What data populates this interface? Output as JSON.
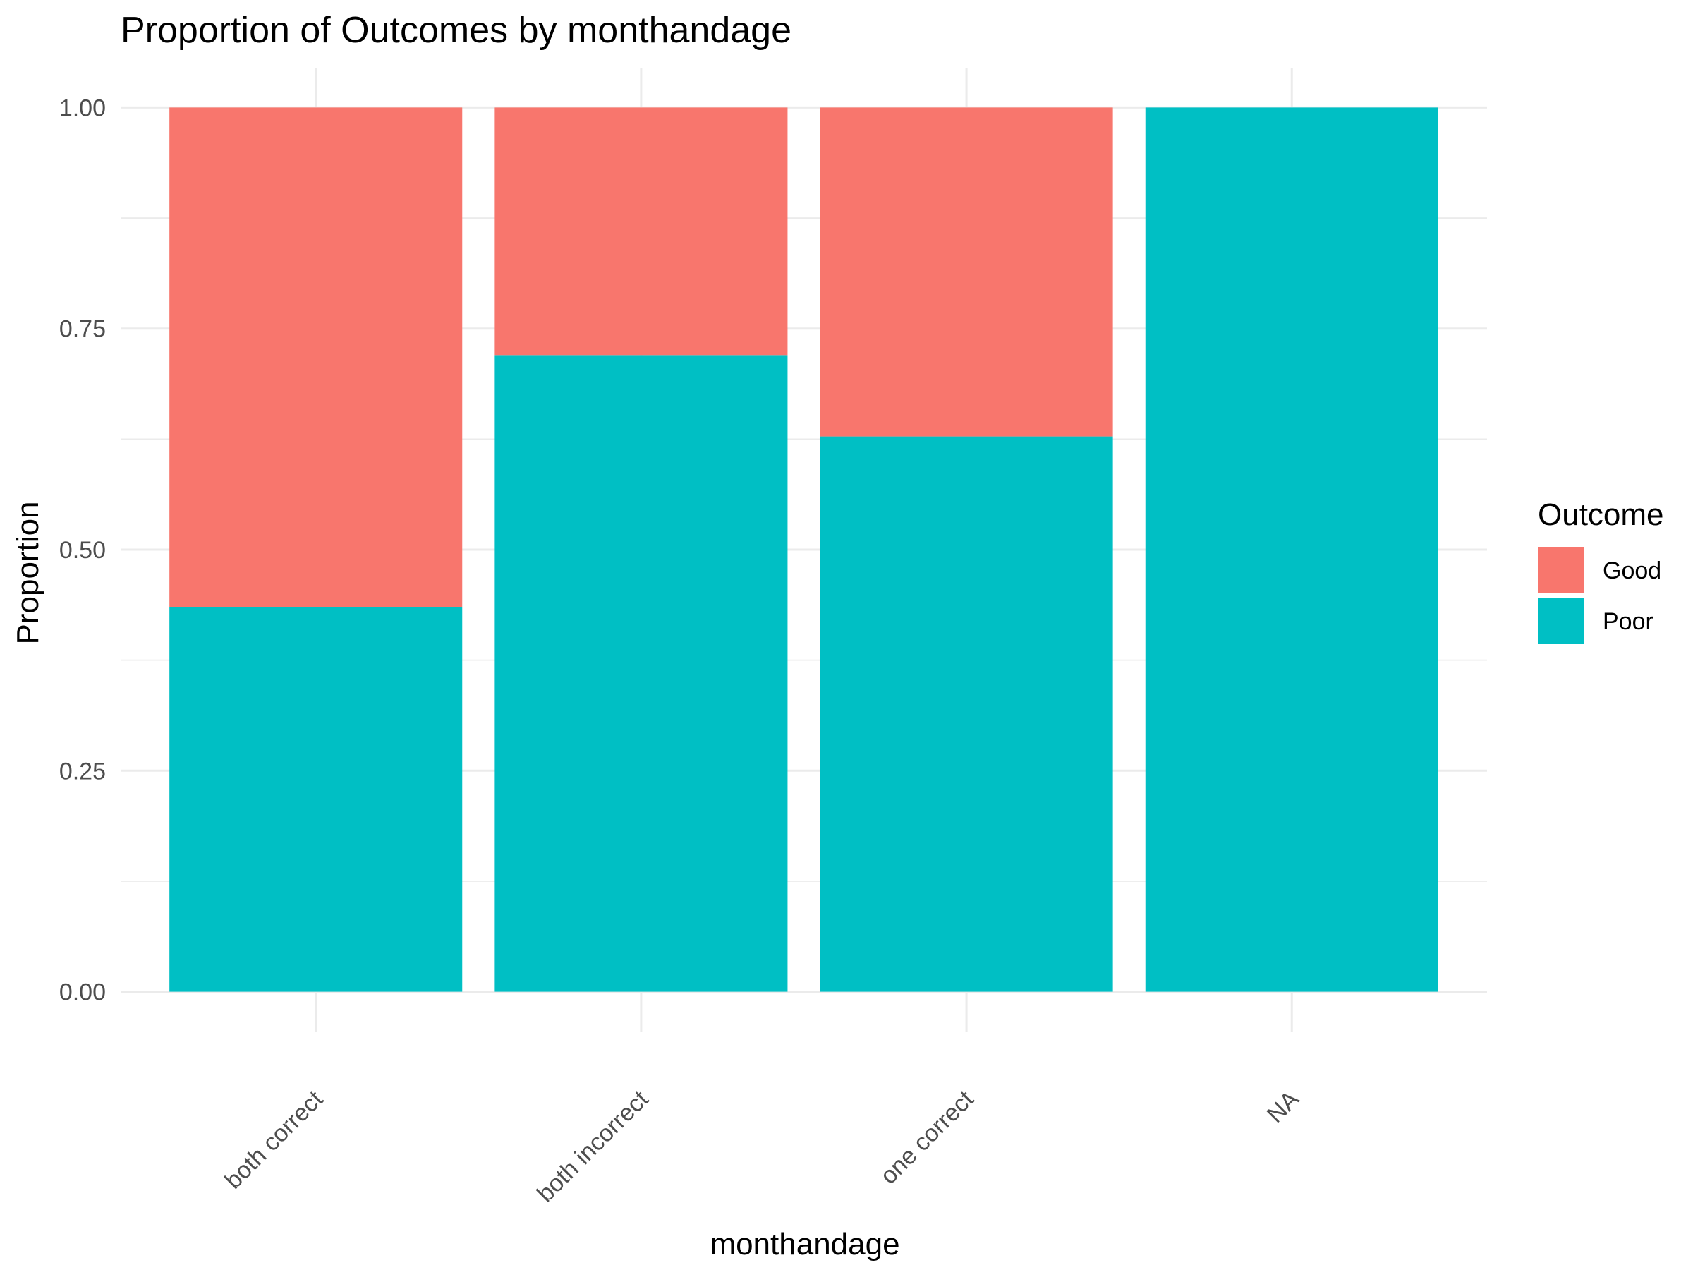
{
  "chart_data": {
    "type": "bar",
    "stacked": true,
    "title": "Proportion of Outcomes by monthandage",
    "xlabel": "monthandage",
    "ylabel": "Proportion",
    "categories": [
      "both correct",
      "both incorrect",
      "one correct",
      "NA"
    ],
    "series": [
      {
        "name": "Good",
        "values": [
          0.565,
          0.28,
          0.372,
          0.0
        ]
      },
      {
        "name": "Poor",
        "values": [
          0.435,
          0.72,
          0.628,
          1.0
        ]
      }
    ],
    "ylim": [
      0,
      1
    ],
    "yticks": [
      "0.00",
      "0.25",
      "0.50",
      "0.75",
      "1.00"
    ],
    "grid": true,
    "legend": {
      "title": "Outcome",
      "placement": "right"
    },
    "colors": {
      "Good": "#F8766D",
      "Poor": "#00BFC4"
    }
  }
}
